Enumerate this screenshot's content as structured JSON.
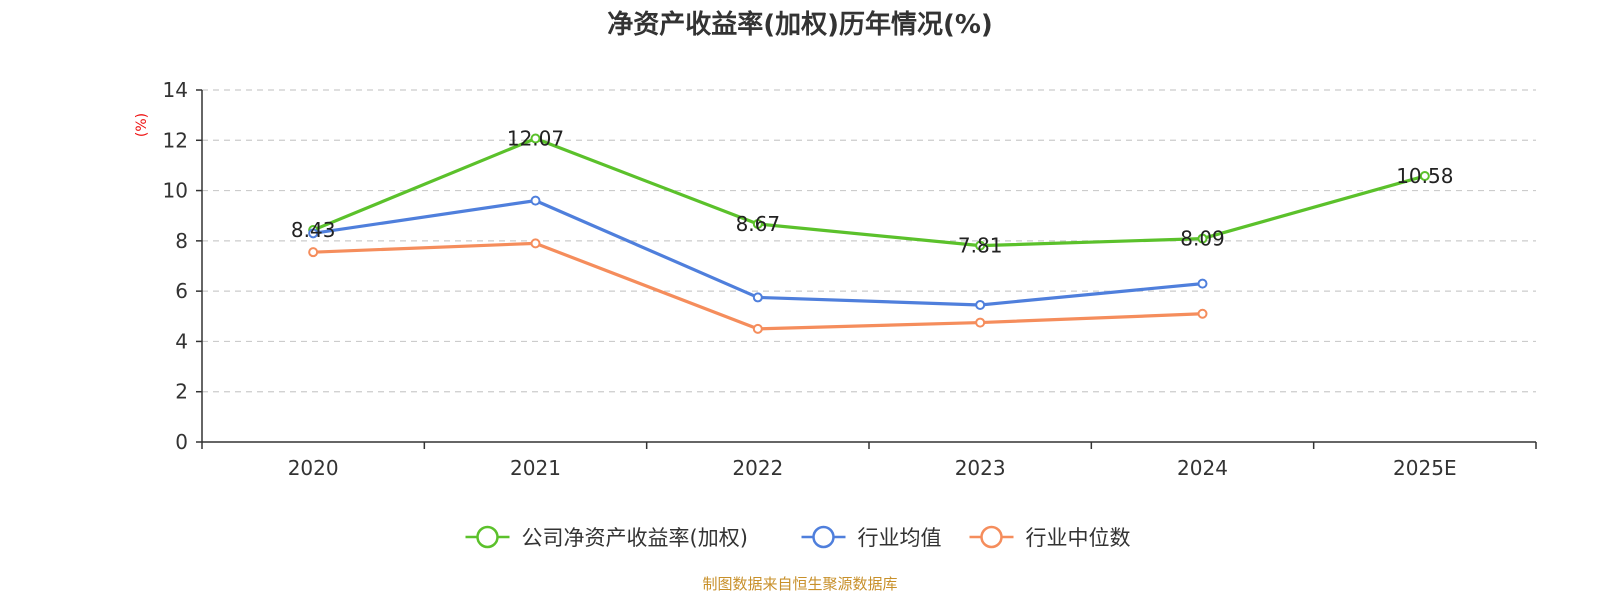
{
  "chart_data": {
    "type": "line",
    "title": "净资产收益率(加权)历年情况(%)",
    "ylabel": "(%)",
    "ylim": [
      0,
      14
    ],
    "yticks": [
      0,
      2,
      4,
      6,
      8,
      10,
      12,
      14
    ],
    "categories": [
      "2020",
      "2021",
      "2022",
      "2023",
      "2024",
      "2025E"
    ],
    "grid": true,
    "legend_position": "bottom-center",
    "series": [
      {
        "name": "公司净资产收益率(加权)",
        "color": "#5bc12b",
        "values": [
          8.43,
          12.07,
          8.67,
          7.81,
          8.09,
          10.58
        ],
        "show_labels": true
      },
      {
        "name": "行业均值",
        "color": "#4f7fdc",
        "values": [
          8.3,
          9.6,
          5.75,
          5.45,
          6.3,
          null
        ],
        "show_labels": false
      },
      {
        "name": "行业中位数",
        "color": "#f58d5c",
        "values": [
          7.55,
          7.9,
          4.5,
          4.75,
          5.1,
          null
        ],
        "show_labels": false
      }
    ],
    "source": "制图数据来自恒生聚源数据库",
    "source_color": "#c8902a",
    "unit_color": "#ee1111"
  }
}
